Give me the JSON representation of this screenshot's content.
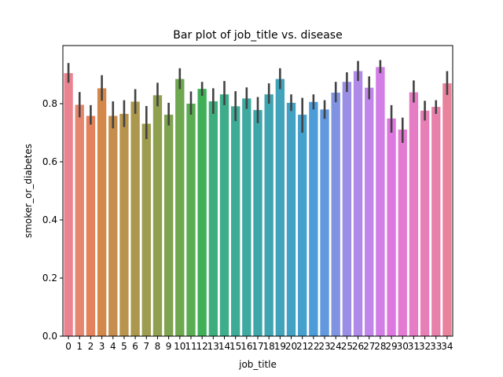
{
  "chart_data": {
    "type": "bar",
    "title": "Bar plot of job_title vs. disease",
    "xlabel": "job_title",
    "ylabel": "smoker_or_diabetes",
    "ylim": [
      0,
      1.0
    ],
    "yticks": [
      "0.0",
      "0.2",
      "0.4",
      "0.6",
      "0.8"
    ],
    "grid": false,
    "categories": [
      "0",
      "1",
      "2",
      "3",
      "4",
      "5",
      "6",
      "7",
      "8",
      "9",
      "10",
      "11",
      "12",
      "13",
      "14",
      "15",
      "16",
      "17",
      "18",
      "19",
      "20",
      "21",
      "22",
      "23",
      "24",
      "25",
      "26",
      "27",
      "28",
      "29",
      "30",
      "31",
      "32",
      "33",
      "34"
    ],
    "values": [
      0.905,
      0.796,
      0.758,
      0.853,
      0.758,
      0.765,
      0.807,
      0.731,
      0.829,
      0.762,
      0.885,
      0.8,
      0.851,
      0.808,
      0.832,
      0.791,
      0.818,
      0.778,
      0.832,
      0.885,
      0.803,
      0.762,
      0.806,
      0.78,
      0.838,
      0.875,
      0.912,
      0.855,
      0.926,
      0.749,
      0.711,
      0.839,
      0.776,
      0.789,
      0.87
    ],
    "err_low": [
      0.872,
      0.753,
      0.728,
      0.81,
      0.715,
      0.72,
      0.765,
      0.678,
      0.791,
      0.725,
      0.85,
      0.762,
      0.827,
      0.765,
      0.795,
      0.74,
      0.782,
      0.733,
      0.8,
      0.85,
      0.775,
      0.7,
      0.78,
      0.748,
      0.805,
      0.84,
      0.878,
      0.815,
      0.905,
      0.7,
      0.665,
      0.804,
      0.742,
      0.765,
      0.83
    ],
    "err_high": [
      0.94,
      0.84,
      0.795,
      0.898,
      0.808,
      0.812,
      0.85,
      0.792,
      0.872,
      0.803,
      0.922,
      0.842,
      0.875,
      0.853,
      0.878,
      0.843,
      0.856,
      0.823,
      0.87,
      0.922,
      0.832,
      0.82,
      0.832,
      0.812,
      0.875,
      0.908,
      0.947,
      0.894,
      0.95,
      0.795,
      0.752,
      0.88,
      0.81,
      0.812,
      0.912
    ],
    "colors": [
      "#ea8390",
      "#e5866e",
      "#e4825c",
      "#d4894a",
      "#c68e4c",
      "#b8944c",
      "#ab984d",
      "#9e9c4e",
      "#8fa04f",
      "#7fa44f",
      "#6ea84f",
      "#5aad52",
      "#3fb058",
      "#3dae7c",
      "#3dad8b",
      "#3eab96",
      "#3ea9a0",
      "#3fa7a9",
      "#40a5b2",
      "#41a4bb",
      "#43a2c3",
      "#46a0cd",
      "#4d9cd9",
      "#6198de",
      "#7f93e1",
      "#9b8ee5",
      "#b089e9",
      "#c086ea",
      "#d27ee7",
      "#de77e0",
      "#e47ad2",
      "#e67dc4",
      "#e87fb7",
      "#e881aa",
      "#e9829c"
    ]
  }
}
